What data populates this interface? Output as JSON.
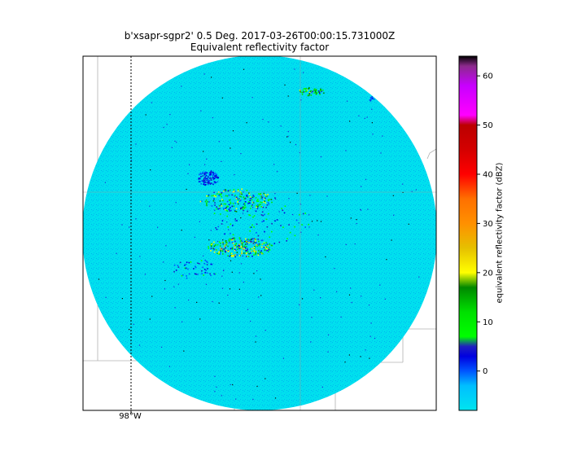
{
  "title_line1": "b'xsapr-sgpr2' 0.5 Deg. 2017-03-26T00:00:15.731000Z",
  "title_line2": "Equivalent reflectivity factor",
  "lon_label": "98°W",
  "colorbar": {
    "label": "equivalent reflectivity factor (dBZ)",
    "ticks": [
      0,
      10,
      20,
      30,
      40,
      50,
      60
    ],
    "range": [
      -8,
      64
    ],
    "stops": [
      {
        "v": -8,
        "c": "#00e5ef"
      },
      {
        "v": -3,
        "c": "#00bfff"
      },
      {
        "v": 0,
        "c": "#0055ff"
      },
      {
        "v": 3,
        "c": "#0000e0"
      },
      {
        "v": 5,
        "c": "#2020c0"
      },
      {
        "v": 7,
        "c": "#00ff00"
      },
      {
        "v": 12,
        "c": "#00e000"
      },
      {
        "v": 17,
        "c": "#008800"
      },
      {
        "v": 20,
        "c": "#ffff00"
      },
      {
        "v": 25,
        "c": "#e6c000"
      },
      {
        "v": 30,
        "c": "#ff9000"
      },
      {
        "v": 35,
        "c": "#ff7000"
      },
      {
        "v": 40,
        "c": "#ff0000"
      },
      {
        "v": 45,
        "c": "#d40000"
      },
      {
        "v": 50,
        "c": "#bb0000"
      },
      {
        "v": 52,
        "c": "#ff00ff"
      },
      {
        "v": 58,
        "c": "#c800ff"
      },
      {
        "v": 62,
        "c": "#8c2a8c"
      },
      {
        "v": 64,
        "c": "#000000"
      }
    ]
  },
  "chart_data": {
    "type": "heatmap",
    "title": "b'xsapr-sgpr2' 0.5 Deg. 2017-03-26T00:00:15.731000Z",
    "subtitle": "Equivalent reflectivity factor",
    "colorbar_label": "equivalent reflectivity factor (dBZ)",
    "colorbar_range": [
      -8,
      64
    ],
    "colorbar_ticks": [
      0,
      10,
      20,
      30,
      40,
      50,
      60
    ],
    "lon_tick_labels": [
      "98°W"
    ],
    "background_reflectivity_dbz": -6
  }
}
